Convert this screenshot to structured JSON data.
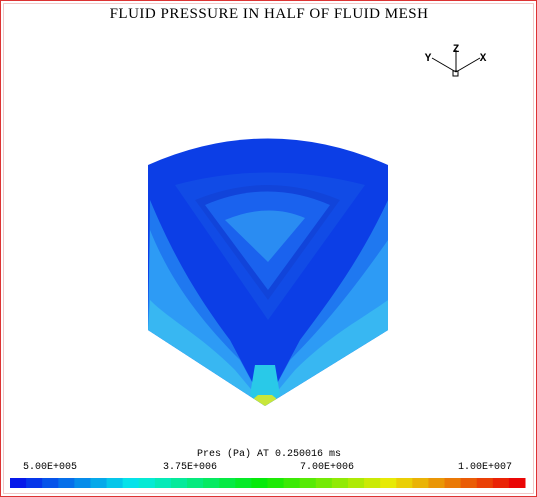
{
  "title": "FLUID PRESSURE IN HALF OF FLUID MESH",
  "triad": {
    "y": "Y",
    "z": "Z",
    "x": "X"
  },
  "legend": {
    "label": "Pres (Pa) AT 0.250016 ms",
    "ticks": [
      "5.00E+005",
      "3.75E+006",
      "7.00E+006",
      "1.00E+007"
    ]
  }
}
